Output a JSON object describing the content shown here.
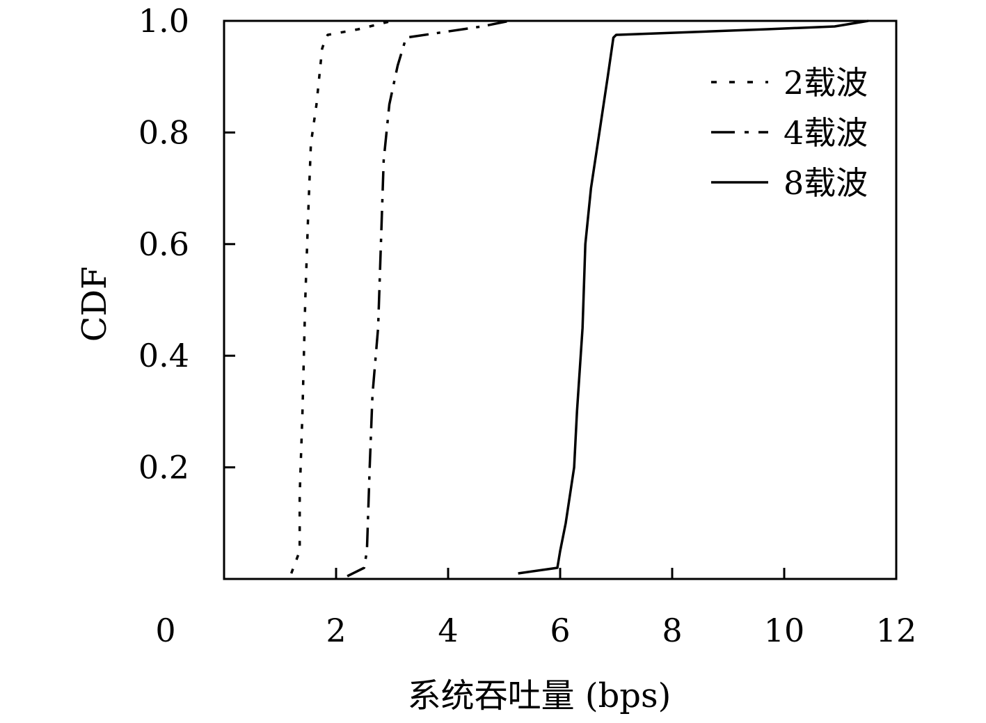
{
  "chart_data": {
    "type": "line",
    "title": "",
    "xlabel": "系统吞吐量 (bps)",
    "ylabel": "CDF",
    "xlim": [
      0,
      12
    ],
    "ylim": [
      0,
      1
    ],
    "x_ticks": [
      "0",
      "2",
      "4",
      "6",
      "8",
      "10",
      "12"
    ],
    "y_ticks": [
      "0.2",
      "0.4",
      "0.6",
      "0.8",
      "1.0"
    ],
    "grid": false,
    "legend_position": "top-right",
    "series": [
      {
        "name": "2载波",
        "style": "dotted",
        "points": [
          [
            1.2,
            0.01
          ],
          [
            1.35,
            0.05
          ],
          [
            1.35,
            0.15
          ],
          [
            1.4,
            0.3
          ],
          [
            1.45,
            0.5
          ],
          [
            1.5,
            0.65
          ],
          [
            1.55,
            0.78
          ],
          [
            1.65,
            0.85
          ],
          [
            1.75,
            0.95
          ],
          [
            1.8,
            0.965
          ],
          [
            1.85,
            0.975
          ],
          [
            2.4,
            0.985
          ],
          [
            3.0,
            1.0
          ]
        ]
      },
      {
        "name": "4载波",
        "style": "dashdot",
        "points": [
          [
            2.2,
            0.005
          ],
          [
            2.5,
            0.02
          ],
          [
            2.55,
            0.05
          ],
          [
            2.6,
            0.2
          ],
          [
            2.65,
            0.33
          ],
          [
            2.75,
            0.45
          ],
          [
            2.8,
            0.6
          ],
          [
            2.85,
            0.75
          ],
          [
            2.95,
            0.85
          ],
          [
            3.1,
            0.92
          ],
          [
            3.25,
            0.97
          ],
          [
            4.6,
            0.99
          ],
          [
            5.1,
            1.0
          ]
        ]
      },
      {
        "name": "8载波",
        "style": "solid",
        "points": [
          [
            5.25,
            0.01
          ],
          [
            5.95,
            0.02
          ],
          [
            6.0,
            0.05
          ],
          [
            6.1,
            0.1
          ],
          [
            6.25,
            0.2
          ],
          [
            6.3,
            0.3
          ],
          [
            6.4,
            0.45
          ],
          [
            6.45,
            0.6
          ],
          [
            6.55,
            0.7
          ],
          [
            6.7,
            0.8
          ],
          [
            6.85,
            0.9
          ],
          [
            6.95,
            0.97
          ],
          [
            7.0,
            0.975
          ],
          [
            9.7,
            0.985
          ],
          [
            10.9,
            0.99
          ],
          [
            11.5,
            1.0
          ]
        ]
      }
    ]
  }
}
